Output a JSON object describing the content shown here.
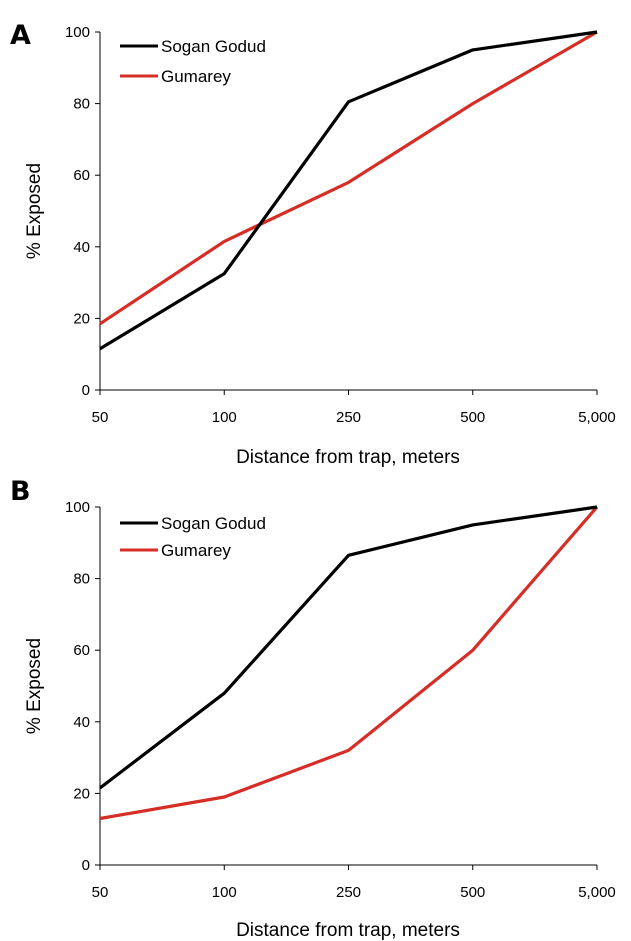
{
  "chart_data": [
    {
      "type": "line",
      "panel_label": "A",
      "categories": [
        "50",
        "100",
        "250",
        "500",
        "5,000"
      ],
      "xlabel": "Distance from trap, meters",
      "ylabel": "% Exposed",
      "ylim": [
        0,
        100
      ],
      "yticks": [
        "0",
        "20",
        "40",
        "60",
        "80",
        "100"
      ],
      "grid": false,
      "legend_position": "top-left",
      "series": [
        {
          "name": "Sogan Godud",
          "color": "#000000",
          "values": [
            11.5,
            32.5,
            80.5,
            95,
            100
          ]
        },
        {
          "name": "Gumarey",
          "color": "#d62d27",
          "values": [
            18.5,
            41.5,
            58,
            80,
            100
          ]
        }
      ]
    },
    {
      "type": "line",
      "panel_label": "B",
      "categories": [
        "50",
        "100",
        "250",
        "500",
        "5,000"
      ],
      "xlabel": "Distance from trap, meters",
      "ylabel": "% Exposed",
      "ylim": [
        0,
        100
      ],
      "yticks": [
        "0",
        "20",
        "40",
        "60",
        "80",
        "100"
      ],
      "grid": false,
      "legend_position": "top-left",
      "series": [
        {
          "name": "Sogan Godud",
          "color": "#000000",
          "values": [
            21.5,
            48,
            86.5,
            95,
            100
          ]
        },
        {
          "name": "Gumarey",
          "color": "#d62d27",
          "values": [
            13,
            19,
            32,
            60,
            100
          ]
        }
      ]
    }
  ]
}
